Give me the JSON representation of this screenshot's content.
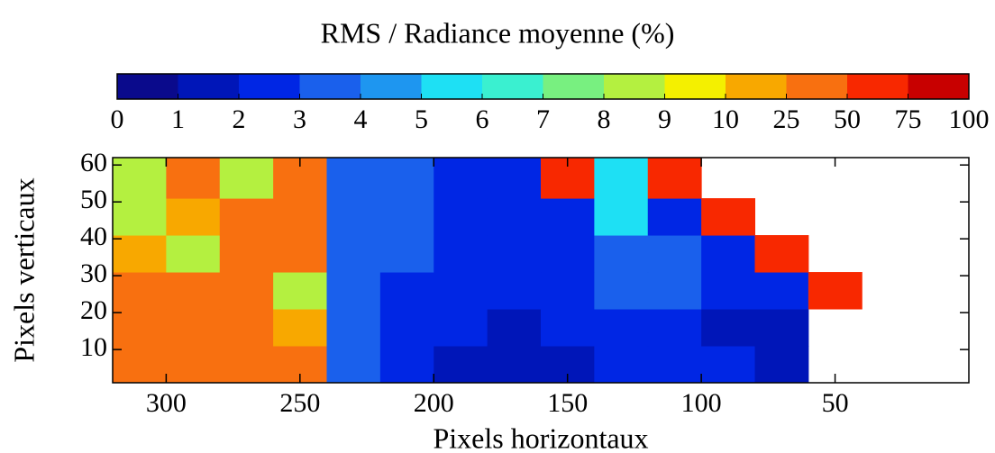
{
  "chart_data": {
    "type": "heatmap",
    "title": "RMS / Radiance moyenne (%)",
    "xlabel": "Pixels horizontaux",
    "ylabel": "Pixels verticaux",
    "xlim": [
      320,
      0
    ],
    "ylim": [
      1,
      62
    ],
    "xticks": [
      300,
      250,
      200,
      150,
      100,
      50
    ],
    "yticks": [
      10,
      20,
      30,
      40,
      50,
      60
    ],
    "x_edges": [
      320,
      300,
      280,
      260,
      240,
      220,
      200,
      180,
      160,
      140,
      120,
      100,
      80,
      60,
      40,
      20,
      0
    ],
    "y_edges": [
      1,
      11,
      21,
      31,
      41,
      51,
      62
    ],
    "z": [
      [
        30,
        30,
        30,
        30,
        3.5,
        2.5,
        1.5,
        1.5,
        1.5,
        2,
        2.5,
        2,
        1.5,
        null,
        null,
        null
      ],
      [
        30,
        30,
        30,
        20,
        3.5,
        2.5,
        2.5,
        1.5,
        2,
        2.5,
        2.5,
        1.5,
        1.5,
        null,
        null,
        null
      ],
      [
        30,
        30,
        30,
        8,
        3.5,
        2.5,
        2.5,
        2.5,
        2.5,
        3.5,
        3.5,
        2.5,
        2.5,
        60,
        null,
        null
      ],
      [
        20,
        8,
        30,
        30,
        3.5,
        3.5,
        2.5,
        2.5,
        2.5,
        3.5,
        3.5,
        2.5,
        60,
        null,
        null,
        null
      ],
      [
        8,
        20,
        30,
        30,
        3.5,
        3.5,
        2.5,
        2.5,
        2.5,
        5.5,
        2.5,
        60,
        null,
        null,
        null,
        null
      ],
      [
        8,
        30,
        8,
        30,
        3.5,
        3.5,
        2.5,
        2.5,
        60,
        5.5,
        60,
        null,
        null,
        null,
        null,
        null
      ]
    ],
    "colorbar": {
      "bounds": [
        0,
        1,
        2,
        3,
        4,
        5,
        6,
        7,
        8,
        9,
        10,
        25,
        50,
        75,
        100
      ],
      "colors": [
        "#0a0a8c",
        "#0016b8",
        "#0026e4",
        "#1a60ec",
        "#1e96f0",
        "#1ee0f4",
        "#3af0d0",
        "#78f080",
        "#b4f040",
        "#f4f000",
        "#f8a800",
        "#f87010",
        "#f82800",
        "#c80000"
      ]
    }
  }
}
